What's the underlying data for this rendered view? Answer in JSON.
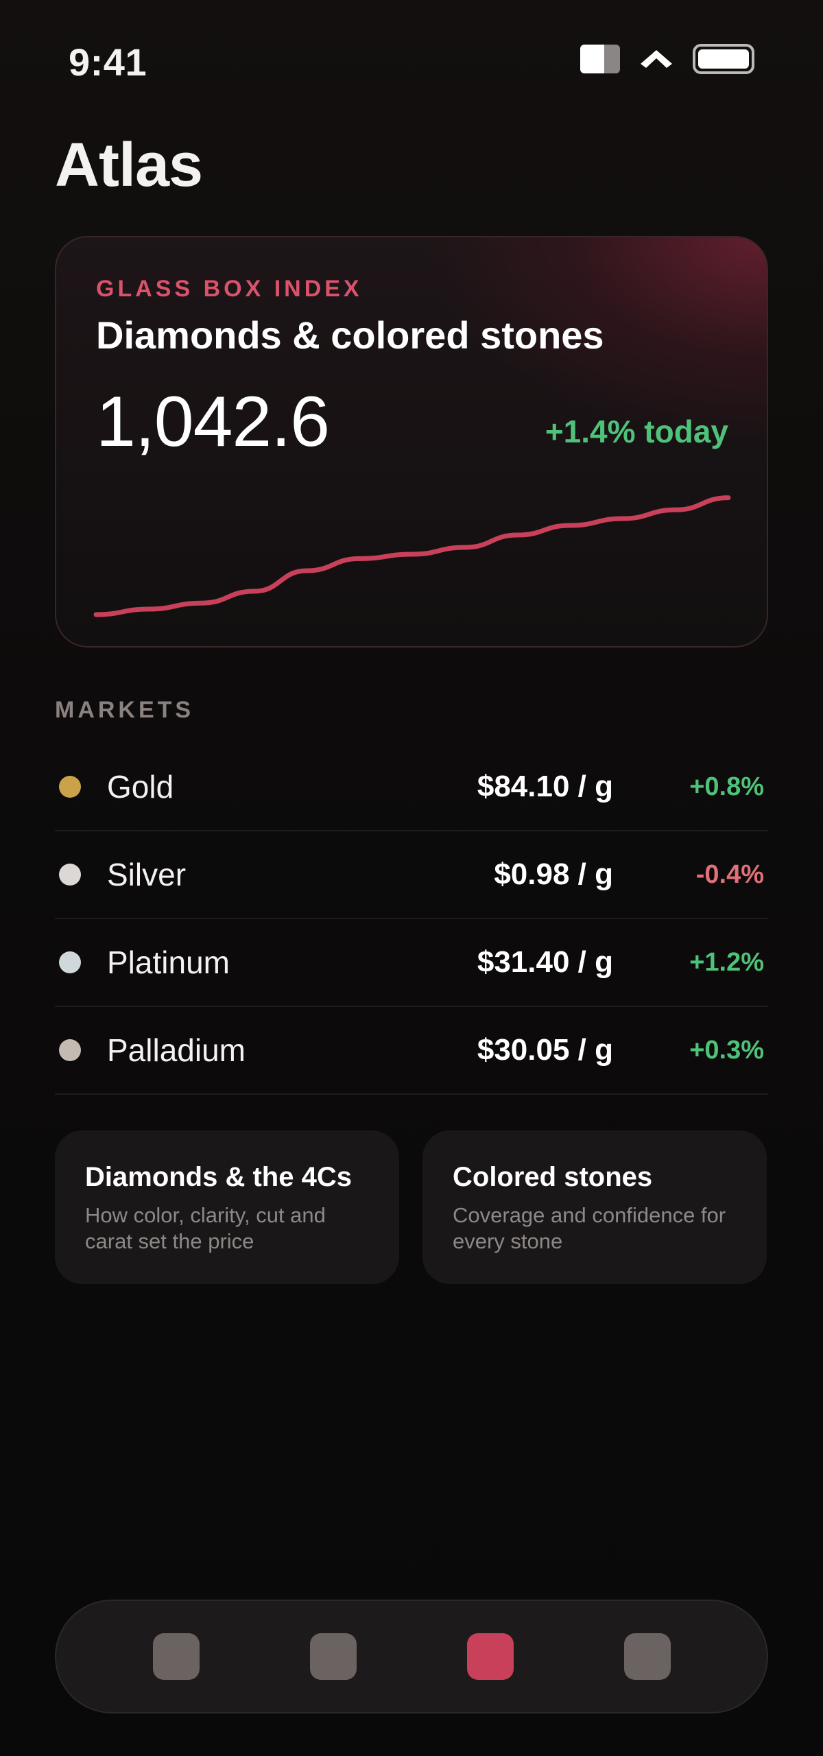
{
  "status_bar": {
    "time": "9:41",
    "icons": [
      "signal-icon",
      "wifi-icon",
      "battery-icon"
    ]
  },
  "app": {
    "title": "Atlas"
  },
  "index_card": {
    "eyebrow": "GLASS BOX INDEX",
    "title": "Diamonds & colored stones",
    "value": "1,042.6",
    "change": "+1.4% today",
    "accent_color": "#d9536c",
    "change_color": "#4fc27a"
  },
  "chart_data": {
    "type": "line",
    "title": "",
    "xlabel": "",
    "ylabel": "",
    "x": [
      0,
      1,
      2,
      3,
      4,
      5,
      6,
      7,
      8,
      9,
      10,
      11,
      12
    ],
    "series": [
      {
        "values": [
          1000.0,
          1002.0,
          1004.2,
          1008.5,
          1016.0,
          1020.4,
          1022.0,
          1024.5,
          1029.0,
          1032.5,
          1035.0,
          1038.2,
          1042.6
        ]
      }
    ],
    "ylim": [
      995,
      1045
    ],
    "grid": false,
    "line_color": "#c8405a"
  },
  "markets": {
    "label": "MARKETS",
    "items": [
      {
        "name": "Gold",
        "price": "$84.10 / g",
        "change": "+0.8%",
        "direction": "up",
        "dot_color": "#c9a24a"
      },
      {
        "name": "Silver",
        "price": "$0.98 / g",
        "change": "-0.4%",
        "direction": "down",
        "dot_color": "#dcd8d6"
      },
      {
        "name": "Platinum",
        "price": "$31.40 / g",
        "change": "+1.2%",
        "direction": "up",
        "dot_color": "#cfd8da"
      },
      {
        "name": "Palladium",
        "price": "$30.05 / g",
        "change": "+0.3%",
        "direction": "up",
        "dot_color": "#c4bbb3"
      }
    ]
  },
  "cards": [
    {
      "title": "Diamonds & the 4Cs",
      "description": "How color, clarity, cut and carat set the price"
    },
    {
      "title": "Colored stones",
      "description": "Coverage and confidence for every stone"
    }
  ],
  "tab_bar": {
    "items": [
      {
        "icon": "home-tab-icon",
        "active": false
      },
      {
        "icon": "search-tab-icon",
        "active": false
      },
      {
        "icon": "markets-tab-icon",
        "active": true
      },
      {
        "icon": "profile-tab-icon",
        "active": false
      }
    ],
    "active_color": "#c8405a"
  }
}
